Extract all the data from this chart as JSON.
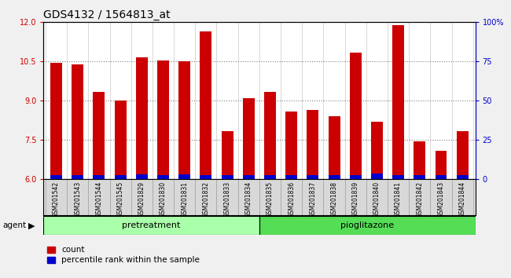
{
  "title": "GDS4132 / 1564813_at",
  "categories": [
    "GSM201542",
    "GSM201543",
    "GSM201544",
    "GSM201545",
    "GSM201829",
    "GSM201830",
    "GSM201831",
    "GSM201832",
    "GSM201833",
    "GSM201834",
    "GSM201835",
    "GSM201836",
    "GSM201837",
    "GSM201838",
    "GSM201839",
    "GSM201840",
    "GSM201841",
    "GSM201842",
    "GSM201843",
    "GSM201844"
  ],
  "count_values": [
    10.45,
    10.4,
    9.35,
    9.0,
    10.65,
    10.55,
    10.5,
    11.65,
    7.85,
    9.1,
    9.35,
    8.6,
    8.65,
    8.4,
    10.85,
    8.2,
    11.9,
    7.45,
    7.1,
    7.85
  ],
  "percentile_values": [
    2.5,
    2.5,
    2.5,
    2.5,
    3.0,
    2.5,
    3.0,
    2.5,
    2.5,
    2.5,
    2.5,
    2.5,
    2.5,
    2.5,
    2.5,
    3.5,
    2.5,
    2.5,
    2.5,
    2.5
  ],
  "bar_bottom": 6.0,
  "ylim_left": [
    6.0,
    12.0
  ],
  "ylim_right": [
    0,
    100
  ],
  "yticks_left": [
    6.0,
    7.5,
    9.0,
    10.5,
    12.0
  ],
  "yticks_right": [
    0,
    25,
    50,
    75,
    100
  ],
  "ytick_labels_right": [
    "0",
    "25",
    "50",
    "75",
    "100%"
  ],
  "count_color": "#cc0000",
  "percentile_color": "#0000cc",
  "bar_width": 0.55,
  "n_pretreatment": 10,
  "n_pioglitazone": 10,
  "pretreatment_label": "pretreatment",
  "pioglitazone_label": "pioglitazone",
  "agent_label": "agent",
  "legend_count_label": "count",
  "legend_percentile_label": "percentile rank within the sample",
  "bg_color": "#d8d8d8",
  "plot_bg_color": "#ffffff",
  "pretreatment_color": "#aaffaa",
  "pioglitazone_color": "#55dd55",
  "title_fontsize": 10,
  "tick_fontsize": 7,
  "label_fontsize": 8,
  "fig_bg_color": "#f0f0f0"
}
